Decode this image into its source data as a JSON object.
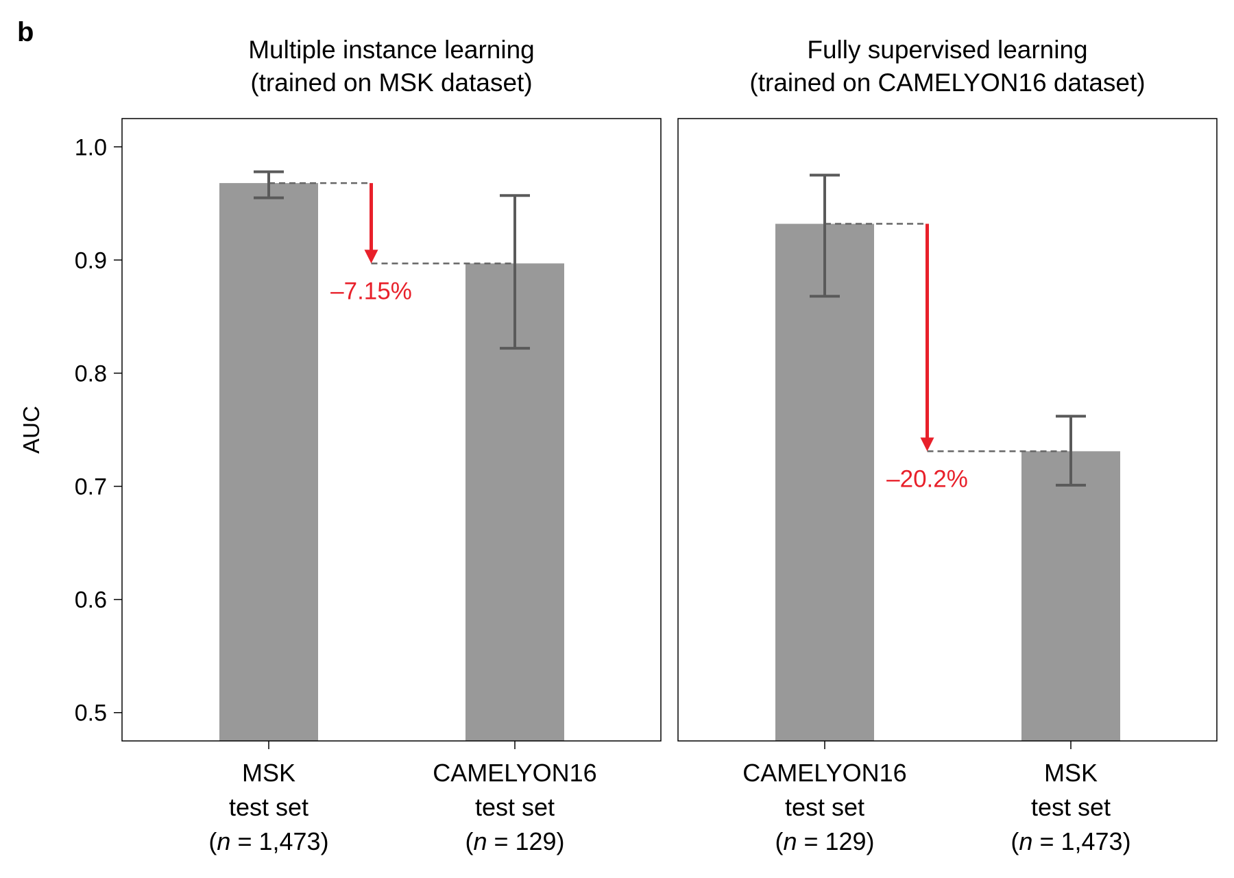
{
  "panel_label": "b",
  "chart_data": [
    {
      "type": "bar",
      "title_lines": [
        "Multiple instance learning",
        "(trained on MSK dataset)"
      ],
      "ylabel": "AUC",
      "xlabel": "",
      "ylim": [
        0.475,
        1.025
      ],
      "yticks": [
        0.5,
        0.6,
        0.7,
        0.8,
        0.9,
        1.0
      ],
      "ytick_labels": [
        "0.5",
        "0.6",
        "0.7",
        "0.8",
        "0.9",
        "1.0"
      ],
      "categories": [
        "MSK test set (n = 1,473)",
        "CAMELYON16 test set (n = 129)"
      ],
      "category_labels": [
        [
          {
            "t": "MSK"
          },
          {
            "t": "test set"
          },
          {
            "a": "(",
            "i": "n",
            "b": " = 1,473)"
          }
        ],
        [
          {
            "t": "CAMELYON16"
          },
          {
            "t": "test set"
          },
          {
            "a": "(",
            "i": "n",
            "b": " = 129)"
          }
        ]
      ],
      "values": [
        0.968,
        0.897
      ],
      "error_low": [
        0.955,
        0.822
      ],
      "error_high": [
        0.978,
        0.957
      ],
      "bar_color": "#999999",
      "error_color": "#5a5a5a",
      "annotation": {
        "text": "–7.15%",
        "from": 0.968,
        "to": 0.897,
        "color": "#e8202a"
      },
      "grid": false
    },
    {
      "type": "bar",
      "title_lines": [
        "Fully supervised learning",
        "(trained on CAMELYON16 dataset)"
      ],
      "ylabel": "",
      "xlabel": "",
      "ylim": [
        0.475,
        1.025
      ],
      "categories": [
        "CAMELYON16 test set (n = 129)",
        "MSK test set (n = 1,473)"
      ],
      "category_labels": [
        [
          {
            "t": "CAMELYON16"
          },
          {
            "t": "test set"
          },
          {
            "a": "(",
            "i": "n",
            "b": " = 129)"
          }
        ],
        [
          {
            "t": "MSK"
          },
          {
            "t": "test set"
          },
          {
            "a": "(",
            "i": "n",
            "b": " = 1,473)"
          }
        ]
      ],
      "values": [
        0.932,
        0.731
      ],
      "error_low": [
        0.868,
        0.701
      ],
      "error_high": [
        0.975,
        0.762
      ],
      "bar_color": "#999999",
      "error_color": "#5a5a5a",
      "annotation": {
        "text": "–20.2%",
        "from": 0.932,
        "to": 0.731,
        "color": "#e8202a"
      },
      "grid": false
    }
  ]
}
